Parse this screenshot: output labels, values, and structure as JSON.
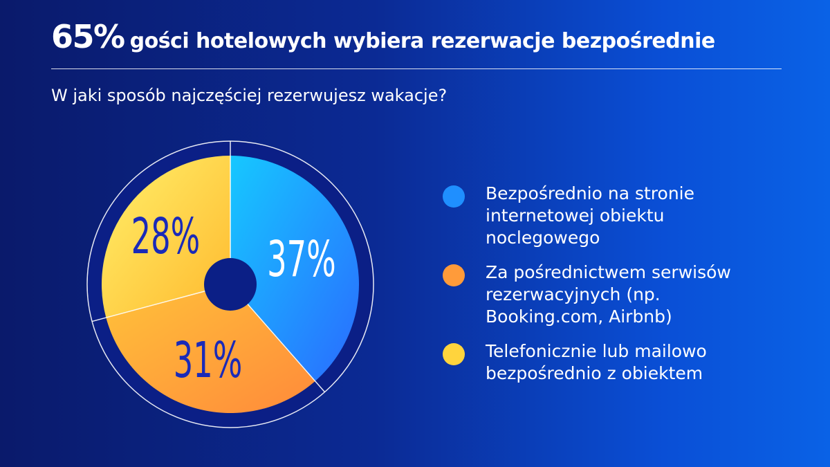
{
  "title": {
    "highlight": "65%",
    "rest": "gości hotelowych wybiera rezerwacje bezpośrednie"
  },
  "question": "W jaki sposób najczęściej rezerwujesz wakacje?",
  "colors": {
    "blue": "#1f8fff",
    "orange": "#ff9b3a",
    "yellow": "#ffd43d",
    "label_dark": "#1a2ab8"
  },
  "chart_data": {
    "type": "pie",
    "slices": [
      {
        "label": "Bezpośrednio na stronie internetowej obiektu noclegowego",
        "value": 37,
        "display": "37%",
        "color": "blue"
      },
      {
        "label": "Za pośrednictwem serwisów rezerwacyjnych (np. Booking.com, Airbnb)",
        "value": 31,
        "display": "31%",
        "color": "orange"
      },
      {
        "label": "Telefonicznie lub mailowo bezpośrednio z obiektem",
        "value": 28,
        "display": "28%",
        "color": "yellow"
      }
    ]
  },
  "legend": [
    {
      "text": "Bezpośrednio na stronie internetowej obiektu noclegowego",
      "color": "blue"
    },
    {
      "text": "Za pośrednictwem serwisów rezerwacyjnych (np. Booking.com, Airbnb)",
      "color": "orange"
    },
    {
      "text": "Telefonicznie lub mailowo bezpośrednio z obiektem",
      "color": "yellow"
    }
  ]
}
